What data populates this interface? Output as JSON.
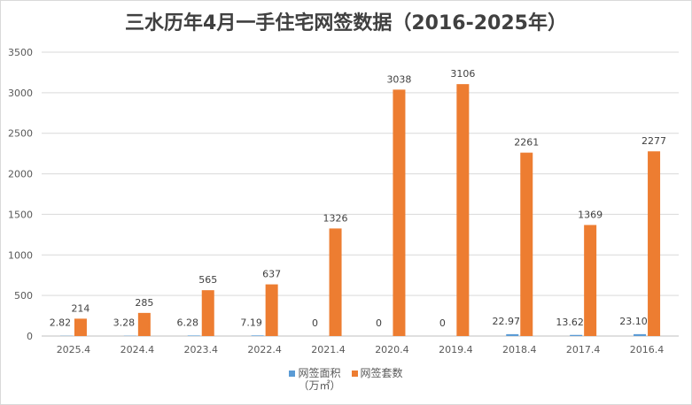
{
  "chart_data": {
    "type": "bar",
    "title": "三水历年4月一手住宅网签数据（2016-2025年）",
    "categories": [
      "2025.4",
      "2024.4",
      "2023.4",
      "2022.4",
      "2021.4",
      "2020.4",
      "2019.4",
      "2018.4",
      "2017.4",
      "2016.4"
    ],
    "series": [
      {
        "name": "网签面积（万㎡）",
        "legend_lines": [
          "网签面积",
          "（万㎡）"
        ],
        "color": "#5b9bd5",
        "values": [
          2.82,
          3.28,
          6.28,
          7.19,
          0,
          0,
          0,
          22.97,
          13.62,
          23.1
        ],
        "labels": [
          "2.82",
          "3.28",
          "6.28",
          "7.19",
          "0",
          "0",
          "0",
          "22.97",
          "13.62",
          "23.10"
        ]
      },
      {
        "name": "网签套数",
        "legend_lines": [
          "网签套数"
        ],
        "color": "#ed7d31",
        "values": [
          214,
          285,
          565,
          637,
          1326,
          3038,
          3106,
          2261,
          1369,
          2277
        ],
        "labels": [
          "214",
          "285",
          "565",
          "637",
          "1326",
          "3038",
          "3106",
          "2261",
          "1369",
          "2277"
        ]
      }
    ],
    "yticks": [
      "0",
      "500",
      "1000",
      "1500",
      "2000",
      "2500",
      "3000",
      "3500"
    ],
    "ylim": [
      0,
      3500
    ],
    "grid": true,
    "legend_position": "bottom"
  }
}
